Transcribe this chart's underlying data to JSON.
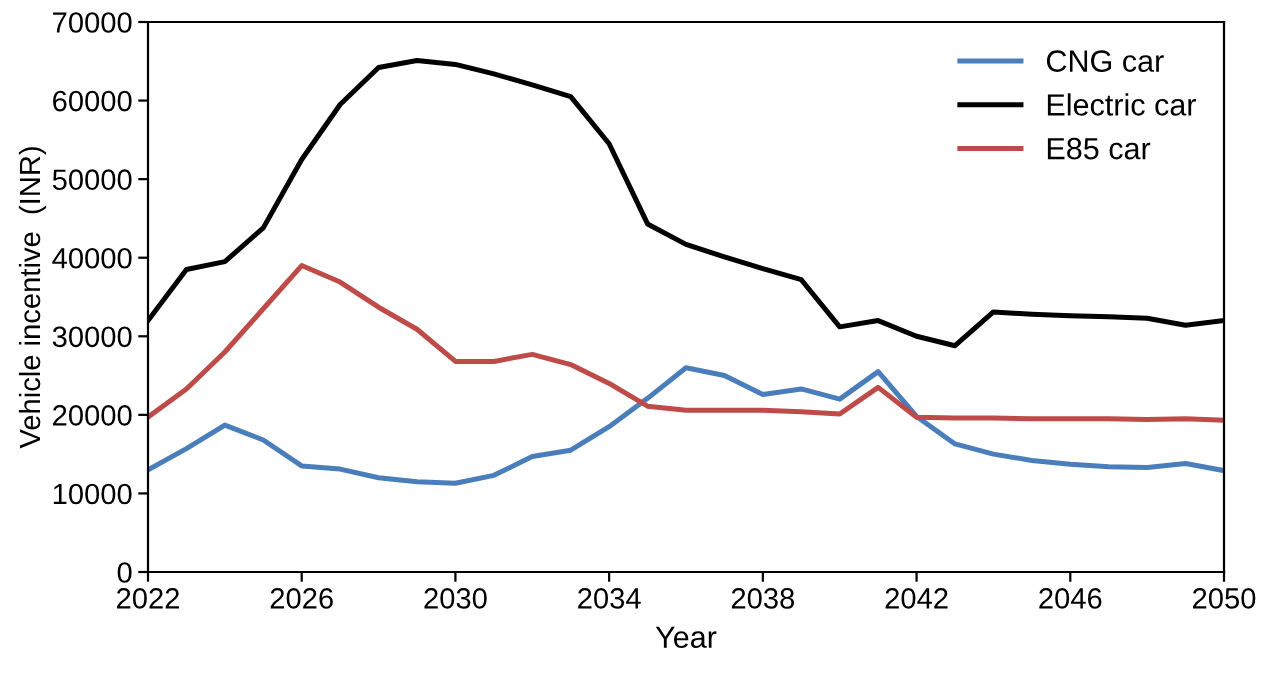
{
  "chart_data": {
    "type": "line",
    "xlabel": "Year",
    "ylabel": "Vehicle incentive  (INR)",
    "x": [
      2022,
      2023,
      2024,
      2025,
      2026,
      2027,
      2028,
      2029,
      2030,
      2031,
      2032,
      2033,
      2034,
      2035,
      2036,
      2037,
      2038,
      2039,
      2040,
      2041,
      2042,
      2043,
      2044,
      2045,
      2046,
      2047,
      2048,
      2049,
      2050
    ],
    "series": [
      {
        "name": "CNG car",
        "color": "#4a7ebb",
        "values": [
          13000,
          15700,
          18700,
          16800,
          13500,
          13100,
          12000,
          11500,
          11300,
          12300,
          14700,
          15500,
          18500,
          22100,
          26000,
          25000,
          22600,
          23300,
          22000,
          25500,
          19800,
          16300,
          15000,
          14200,
          13700,
          13400,
          13300,
          13800,
          12900
        ]
      },
      {
        "name": "Electric car",
        "color": "#000000",
        "values": [
          32000,
          38500,
          39500,
          43800,
          52500,
          59500,
          64200,
          65100,
          64600,
          63400,
          62000,
          60500,
          54500,
          44300,
          41700,
          40100,
          38600,
          37200,
          31200,
          32000,
          30000,
          28800,
          33100,
          32800,
          32600,
          32500,
          32300,
          31400,
          32000
        ]
      },
      {
        "name": "E85 car",
        "color": "#be4b48",
        "values": [
          19700,
          23300,
          28000,
          33500,
          39000,
          36900,
          33700,
          30900,
          26800,
          26800,
          27700,
          26400,
          24000,
          21100,
          20600,
          20600,
          20600,
          20400,
          20100,
          23500,
          19700,
          19600,
          19600,
          19500,
          19500,
          19500,
          19400,
          19500,
          19300
        ]
      }
    ],
    "xlim": [
      2022,
      2050
    ],
    "xticks": [
      2022,
      2026,
      2030,
      2034,
      2038,
      2042,
      2046,
      2050
    ],
    "ylim": [
      0,
      70000
    ],
    "yticks": [
      0,
      10000,
      20000,
      30000,
      40000,
      50000,
      60000,
      70000
    ],
    "grid": false,
    "legend": "top right",
    "marker": "none",
    "line_style": "solid"
  }
}
